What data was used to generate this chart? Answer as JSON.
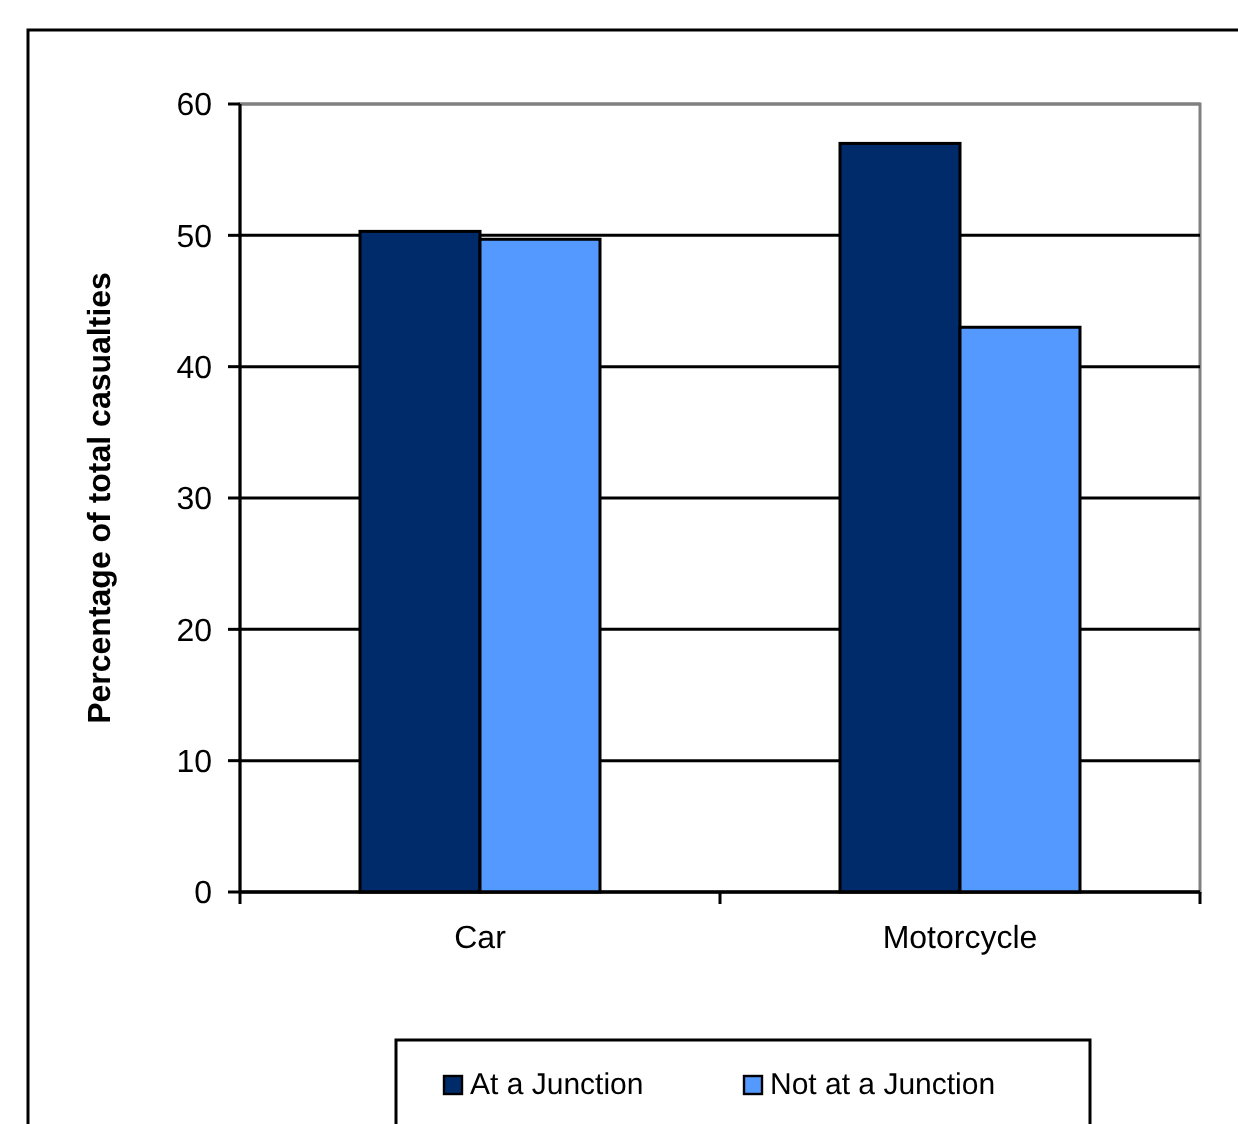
{
  "chart_data": {
    "type": "bar",
    "ylabel": "Percentage of total casualties",
    "categories": [
      "Car",
      "Motorcycle"
    ],
    "series": [
      {
        "name": "At a Junction",
        "color": "#002b6b",
        "values": [
          50.3,
          57.0
        ]
      },
      {
        "name": "Not at a Junction",
        "color": "#5499ff",
        "values": [
          49.7,
          43.0
        ]
      }
    ],
    "ylim": [
      0,
      60
    ],
    "yticks": [
      0,
      10,
      20,
      30,
      40,
      50,
      60
    ],
    "grid": "y",
    "legend": "bottom"
  }
}
